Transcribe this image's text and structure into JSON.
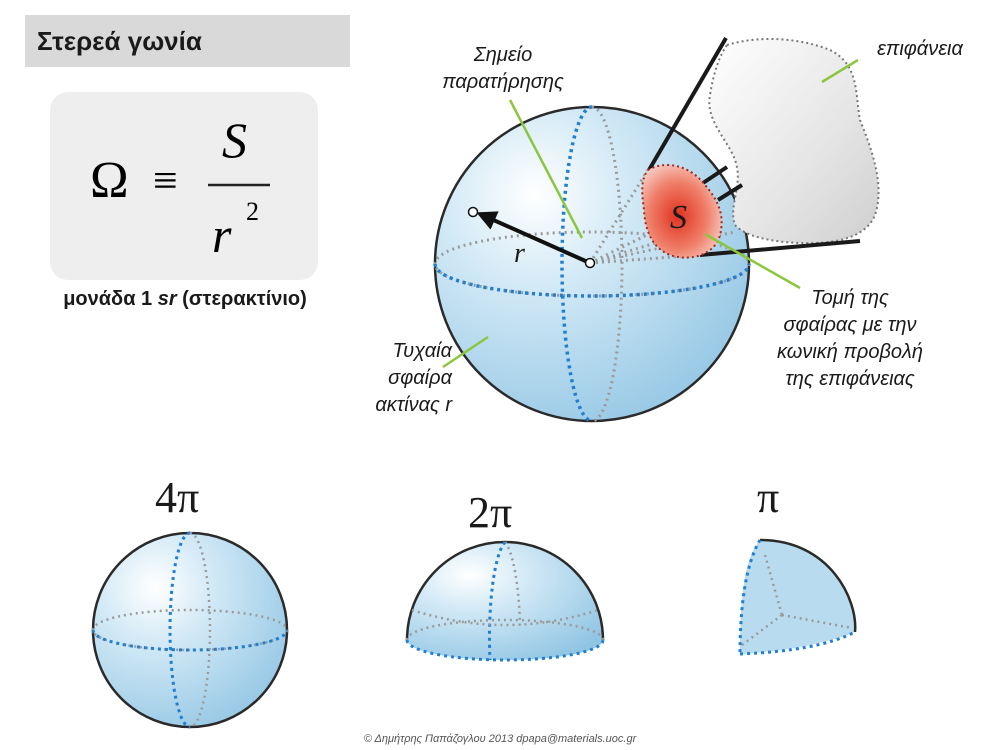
{
  "title": "Στερεά γωνία",
  "formula": {
    "lhs": "Ω",
    "equiv": "≡",
    "numerator": "S",
    "denominator": "r",
    "exponent": "2"
  },
  "unit_caption": {
    "prefix": "μονάδα 1 ",
    "unit": "sr",
    "suffix": " (στερακτίνιο)"
  },
  "labels": {
    "observation_point": [
      "Σημείο",
      "παρατήρησης"
    ],
    "surface": "επιφάνεια",
    "radius_symbol": "r",
    "area_symbol": "S",
    "random_sphere": [
      "Τυχαία",
      "σφαίρα",
      "ακτίνας r"
    ],
    "intersection": [
      "Τομή της",
      "σφαίρας με την",
      "κωνική προβολή",
      "της επιφάνειας"
    ]
  },
  "examples": [
    {
      "value": "4π",
      "shape": "full sphere"
    },
    {
      "value": "2π",
      "shape": "hemisphere"
    },
    {
      "value": "π",
      "shape": "quarter sphere"
    }
  ],
  "colors": {
    "sphere_fill": "#b9dbef",
    "equator_dash": "#1f7fd1",
    "hidden_dash": "#9a9a9a",
    "surface_fill": "#e4e4e4",
    "spot_fill": "#e53b2c",
    "leader_line": "#8cc63f"
  },
  "footer": "© Δημήτρης Παπάζογλου 2013 dpapa@materials.uoc.gr"
}
